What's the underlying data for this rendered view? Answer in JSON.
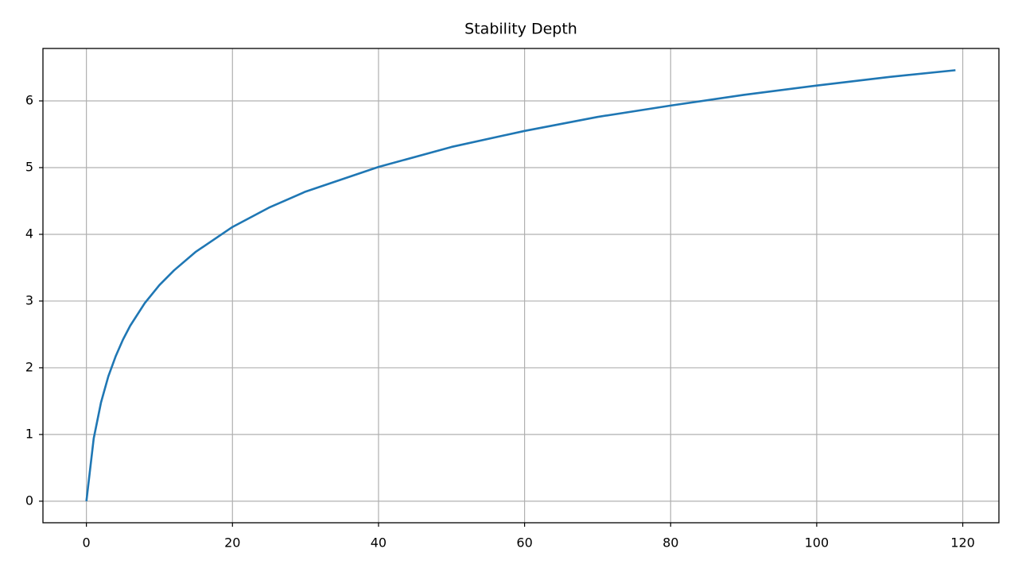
{
  "chart_data": {
    "type": "line",
    "title": "Stability Depth",
    "x": [
      0,
      1,
      2,
      3,
      4,
      5,
      6,
      8,
      10,
      12,
      15,
      20,
      25,
      30,
      40,
      50,
      60,
      70,
      80,
      90,
      100,
      110,
      119
    ],
    "series": [
      {
        "color": "#1f77b4",
        "values": [
          0,
          0.94,
          1.48,
          1.87,
          2.17,
          2.42,
          2.63,
          2.97,
          3.24,
          3.46,
          3.74,
          4.11,
          4.4,
          4.64,
          5.01,
          5.31,
          5.55,
          5.76,
          5.93,
          6.09,
          6.23,
          6.36,
          6.46
        ]
      }
    ],
    "xlim": [
      -5.95,
      124.95
    ],
    "xticks": [
      0,
      20,
      40,
      60,
      80,
      100,
      120
    ],
    "ylim": [
      -0.323,
      6.786
    ],
    "yticks": [
      0,
      1,
      2,
      3,
      4,
      5,
      6
    ],
    "grid": true
  }
}
